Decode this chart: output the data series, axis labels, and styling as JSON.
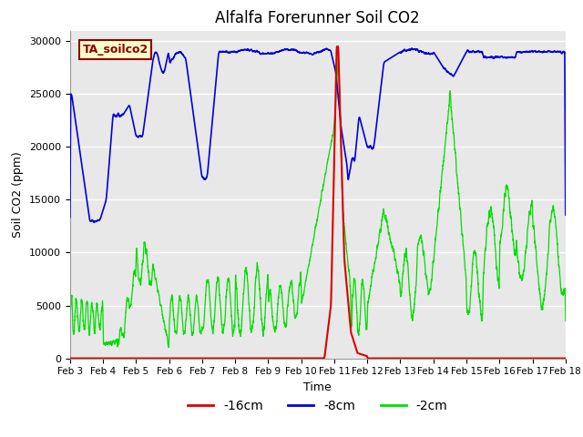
{
  "title": "Alfalfa Forerunner Soil CO2",
  "ylabel": "Soil CO2 (ppm)",
  "xlabel": "Time",
  "ylim": [
    0,
    31000
  ],
  "yticks": [
    0,
    5000,
    10000,
    15000,
    20000,
    25000,
    30000
  ],
  "xtick_labels": [
    "Feb 3",
    "Feb 4",
    "Feb 5",
    "Feb 6",
    "Feb 7",
    "Feb 8",
    "Feb 9",
    "Feb 10",
    "Feb 11",
    "Feb 12",
    "Feb 13",
    "Feb 14",
    "Feb 15",
    "Feb 16",
    "Feb 17",
    "Feb 18"
  ],
  "line_red_label": "-16cm",
  "line_blue_label": "-8cm",
  "line_green_label": "-2cm",
  "line_red_color": "#dd0000",
  "line_blue_color": "#0000dd",
  "line_green_color": "#00dd00",
  "annotation_label": "TA_soilco2",
  "bg_color": "#e8e8e8",
  "fig_bg": "#ffffff",
  "title_fontsize": 12,
  "axis_fontsize": 9,
  "legend_fontsize": 10
}
